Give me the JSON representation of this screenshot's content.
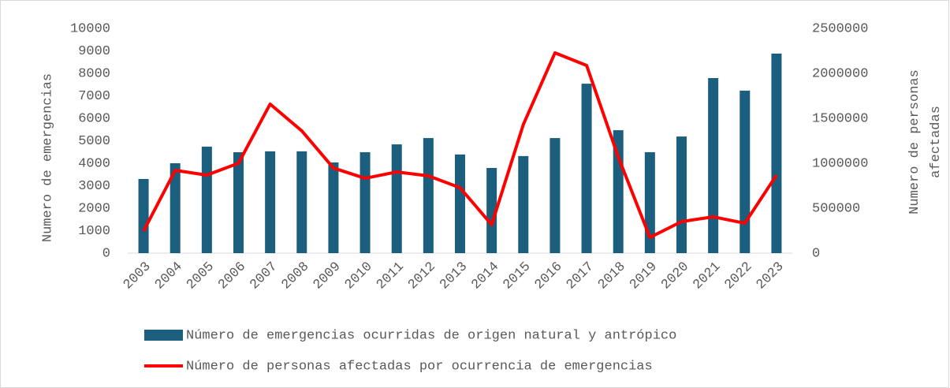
{
  "chart_data": {
    "type": "bar_line",
    "y_label": "Numero de emergencias",
    "y2_label": "Numero de personas afectadas",
    "categories": [
      "2003",
      "2004",
      "2005",
      "2006",
      "2007",
      "2008",
      "2009",
      "2010",
      "2011",
      "2012",
      "2013",
      "2014",
      "2015",
      "2016",
      "2017",
      "2018",
      "2019",
      "2020",
      "2021",
      "2022",
      "2023"
    ],
    "series": [
      {
        "name": "Número de emergencias ocurridas de origen natural y antrópico",
        "type": "bar",
        "color": "#1b5e7e",
        "values": [
          3300,
          4000,
          4740,
          4490,
          4530,
          4530,
          4035,
          4490,
          4840,
          5120,
          4390,
          3790,
          4320,
          5120,
          7540,
          5470,
          4490,
          5190,
          7790,
          7230,
          8880
        ]
      },
      {
        "name": "Número de personas afectadas por ocurrencia de emergencias",
        "type": "line",
        "axis": "y2",
        "color": "#ff0000",
        "values": [
          245000,
          921000,
          868000,
          1000000,
          1658000,
          1360000,
          947000,
          833000,
          903000,
          860000,
          728000,
          316000,
          1430000,
          2228000,
          2088000,
          1070000,
          175000,
          351000,
          404000,
          333000,
          868000
        ]
      }
    ],
    "ylim": [
      0,
      10000
    ],
    "yticks": [
      0,
      1000,
      2000,
      3000,
      4000,
      5000,
      6000,
      7000,
      8000,
      9000,
      10000
    ],
    "y2lim": [
      0,
      2500000
    ],
    "y2ticks": [
      0,
      500000,
      1000000,
      1500000,
      2000000,
      2500000
    ],
    "legend": "bottom"
  }
}
